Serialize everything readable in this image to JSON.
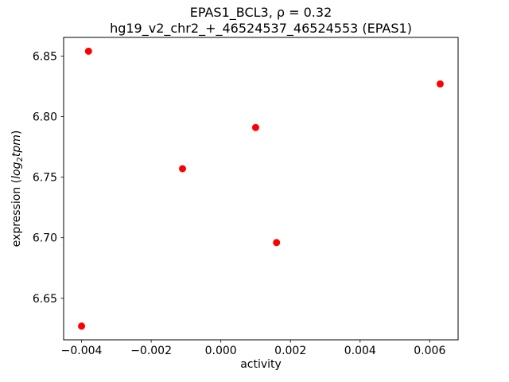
{
  "chart_data": {
    "type": "scatter",
    "title_line1": "EPAS1_BCL3, ρ = 0.32",
    "title_line2": "hg19_v2_chr2_+_46524537_46524553 (EPAS1)",
    "xlabel": "activity",
    "ylabel": {
      "prefix": "expression (",
      "italic1": "log",
      "sub": "2",
      "italic2": "tpm",
      "suffix": ")"
    },
    "ylabel_plain": "expression (log2 tpm)",
    "marker_color": "#ff0000",
    "marker_radius": 4.5,
    "points": [
      [
        -0.0038,
        6.854
      ],
      [
        -0.004,
        6.627
      ],
      [
        -0.0011,
        6.757
      ],
      [
        0.001,
        6.791
      ],
      [
        0.0016,
        6.696
      ],
      [
        0.0063,
        6.827
      ]
    ],
    "xlim": [
      -0.004515,
      0.006815
    ],
    "ylim": [
      6.6157,
      6.8654
    ],
    "x_ticks": {
      "values": [
        -0.004,
        -0.002,
        0.0,
        0.002,
        0.004,
        0.006
      ],
      "labels": [
        "−0.004",
        "−0.002",
        "0.000",
        "0.002",
        "0.004",
        "0.006"
      ]
    },
    "y_ticks": {
      "values": [
        6.65,
        6.7,
        6.75,
        6.8,
        6.85
      ],
      "labels": [
        "6.65",
        "6.70",
        "6.75",
        "6.80",
        "6.85"
      ]
    },
    "grid": false,
    "legend": null
  }
}
